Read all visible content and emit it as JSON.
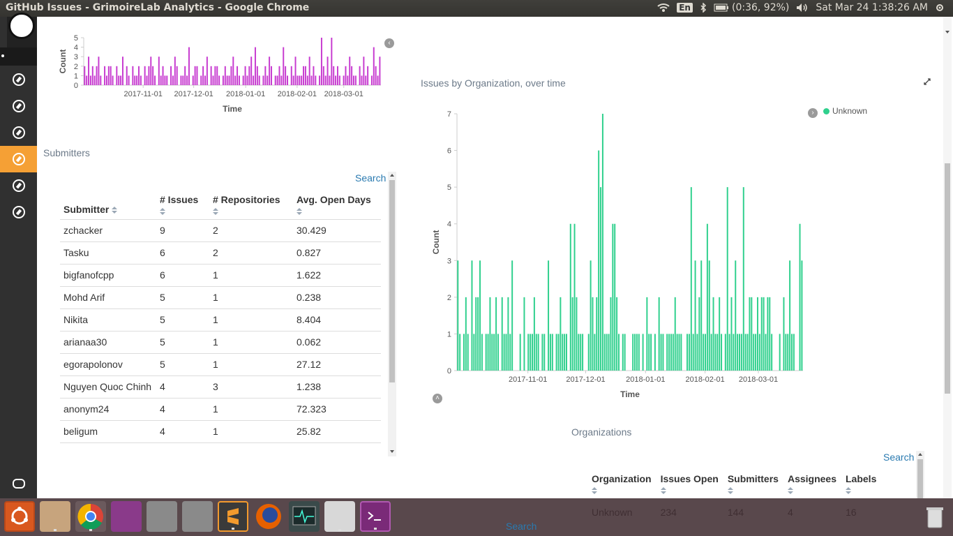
{
  "window": {
    "title": "GitHub Issues - GrimoireLab Analytics - Google Chrome"
  },
  "system_tray": {
    "keyboard": "En",
    "battery": "(0:36, 92%)",
    "clock": "Sat Mar 24  1:38:26 AM",
    "icons": [
      "wifi-icon",
      "bluetooth-icon",
      "battery-icon",
      "volume-icon",
      "settings-gear-icon"
    ]
  },
  "kibana_nav": {
    "items": [
      "compass-icon",
      "compass-icon",
      "compass-icon",
      "compass-icon",
      "compass-icon",
      "compass-icon"
    ],
    "active_index": 3
  },
  "chart_data": [
    {
      "type": "bar",
      "panel": "top-left-partial",
      "title": "",
      "xlabel": "Time",
      "ylabel": "Count",
      "ylim": [
        0,
        5
      ],
      "yticks": [
        0,
        1,
        2,
        3,
        4,
        5
      ],
      "xticks": [
        "2017-11-01",
        "2017-12-01",
        "2018-01-01",
        "2018-02-01",
        "2018-03-01"
      ],
      "color": "#c73bd0",
      "values": [
        2,
        1,
        3,
        1,
        2,
        1,
        2,
        3,
        1,
        0,
        2,
        1,
        2,
        2,
        1,
        0,
        2,
        1,
        1,
        3,
        0,
        2,
        1,
        0,
        2,
        1,
        1,
        2,
        1,
        0,
        2,
        1,
        2,
        3,
        2,
        1,
        0,
        3,
        1,
        2,
        1,
        1,
        0,
        2,
        1,
        3,
        2,
        0,
        1,
        1,
        2,
        1,
        4,
        0,
        1,
        2,
        2,
        0,
        1,
        2,
        1,
        3,
        0,
        2,
        1,
        2,
        2,
        1,
        0,
        1,
        2,
        1,
        1,
        2,
        3,
        1,
        2,
        1,
        0,
        1,
        2,
        1,
        2,
        3,
        1,
        4,
        2,
        1,
        0,
        1,
        2,
        1,
        3,
        2,
        0,
        1,
        1,
        2,
        1,
        4,
        2,
        1,
        0,
        2,
        1,
        3,
        1,
        1,
        1,
        2,
        2,
        1,
        3,
        1,
        2,
        1,
        0,
        1,
        5,
        2,
        1,
        3,
        1,
        5,
        2,
        1,
        2,
        1,
        0,
        1,
        2,
        1,
        3,
        2,
        1,
        1,
        0,
        2,
        1,
        3,
        1,
        2,
        0,
        1,
        4,
        2,
        1,
        3
      ],
      "grid": false,
      "legend": "none"
    },
    {
      "type": "bar",
      "panel": "issues-by-organization",
      "title": "Issues by Organization, over time",
      "xlabel": "Time",
      "ylabel": "Count",
      "ylim": [
        0,
        7
      ],
      "yticks": [
        0,
        1,
        2,
        3,
        4,
        5,
        6,
        7
      ],
      "xticks": [
        "2017-11-01",
        "2017-12-01",
        "2018-01-01",
        "2018-02-01",
        "2018-03-01"
      ],
      "series": [
        {
          "name": "Unknown",
          "color": "#2fd08d",
          "values": [
            3,
            1,
            0,
            1,
            2,
            1,
            0,
            3,
            1,
            2,
            2,
            3,
            1,
            0,
            1,
            1,
            2,
            1,
            1,
            2,
            1,
            0,
            2,
            1,
            1,
            2,
            1,
            3,
            0,
            0,
            0,
            1,
            0,
            2,
            0,
            1,
            1,
            1,
            2,
            1,
            1,
            0,
            1,
            1,
            0,
            3,
            1,
            1,
            0,
            1,
            1,
            2,
            1,
            1,
            1,
            0,
            4,
            2,
            4,
            2,
            1,
            1,
            1,
            0,
            0,
            1,
            3,
            2,
            1,
            2,
            6,
            5,
            7,
            1,
            1,
            1,
            2,
            4,
            4,
            2,
            1,
            0,
            1,
            1,
            0,
            0,
            0,
            1,
            1,
            1,
            1,
            0,
            1,
            0,
            2,
            1,
            1,
            0,
            1,
            0,
            2,
            1,
            1,
            0,
            1,
            1,
            1,
            1,
            2,
            1,
            1,
            1,
            0,
            0,
            1,
            1,
            5,
            1,
            3,
            1,
            2,
            3,
            1,
            1,
            4,
            3,
            1,
            2,
            1,
            1,
            2,
            1,
            0,
            1,
            5,
            1,
            2,
            1,
            3,
            1,
            1,
            1,
            5,
            1,
            1,
            2,
            2,
            1,
            1,
            2,
            1,
            2,
            2,
            1,
            2,
            2,
            1,
            0,
            0,
            0,
            1,
            0,
            2,
            1,
            1,
            3,
            1,
            1,
            0,
            0,
            4,
            3
          ]
        }
      ],
      "grid": false,
      "legend": "top-right"
    }
  ],
  "submitters": {
    "title": "Submitters",
    "search": "Search",
    "columns": [
      "Submitter",
      "# Issues",
      "# Repositories",
      "Avg. Open Days"
    ],
    "rows": [
      [
        "zchacker",
        "9",
        "2",
        "30.429"
      ],
      [
        "Tasku",
        "6",
        "2",
        "0.827"
      ],
      [
        "bigfanofcpp",
        "6",
        "1",
        "1.622"
      ],
      [
        "Mohd Arif",
        "5",
        "1",
        "0.238"
      ],
      [
        "Nikita",
        "5",
        "1",
        "8.404"
      ],
      [
        "arianaa30",
        "5",
        "1",
        "0.062"
      ],
      [
        "egorapolonov",
        "5",
        "1",
        "27.12"
      ],
      [
        "Nguyen Quoc Chinh",
        "4",
        "3",
        "1.238"
      ],
      [
        "anonym24",
        "4",
        "1",
        "72.323"
      ],
      [
        "beligum",
        "4",
        "1",
        "25.82"
      ]
    ]
  },
  "organizations": {
    "title": "Organizations",
    "search": "Search",
    "columns": [
      "Organization",
      "Issues Open",
      "Submitters",
      "Assignees",
      "Labels"
    ],
    "rows": [
      [
        "Unknown",
        "234",
        "144",
        "4",
        "16"
      ]
    ]
  },
  "bottom_search": "Search",
  "dock": {
    "apps": [
      "ubuntu-dash-icon",
      "files-icon",
      "chrome-icon",
      "document-viewer-icon",
      "disk-icon",
      "disk-icon",
      "sublime-text-icon",
      "firefox-icon",
      "system-monitor-icon",
      "text-editor-icon",
      "terminal-icon",
      "trash-icon"
    ]
  }
}
